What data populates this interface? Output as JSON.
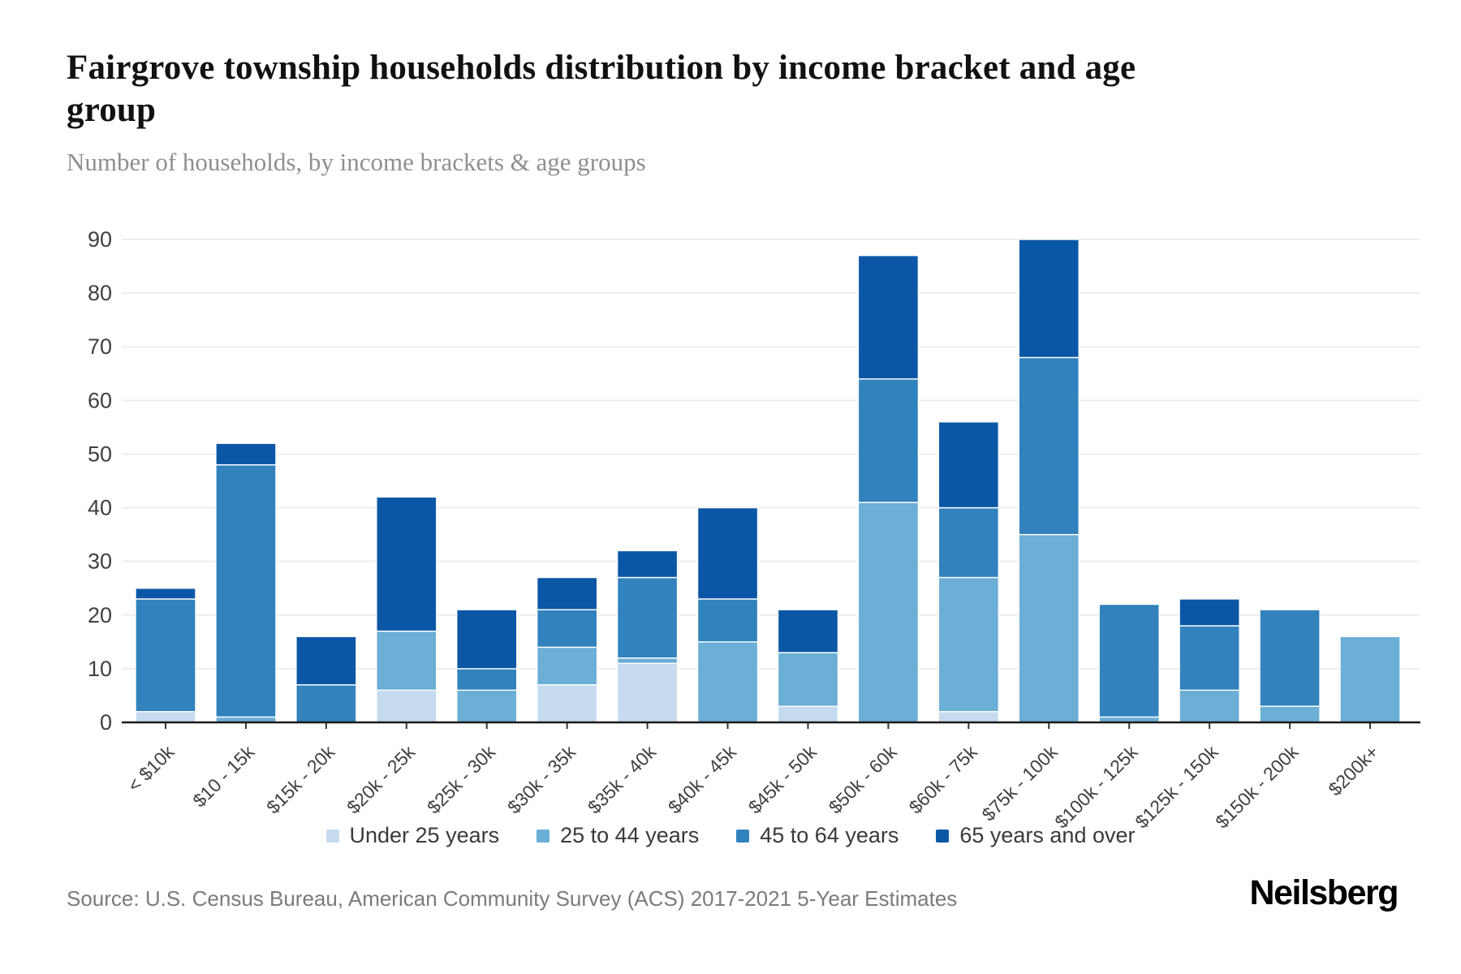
{
  "header": {
    "title": "Fairgrove township households distribution by income bracket and age group",
    "subtitle": "Number of households, by income brackets & age groups"
  },
  "footer": {
    "source": "Source: U.S. Census Bureau, American Community Survey (ACS) 2017-2021 5-Year Estimates",
    "brand": "Neilsberg"
  },
  "chart_data": {
    "type": "bar",
    "stacked": true,
    "title": "Fairgrove township households distribution by income bracket and age group",
    "subtitle": "Number of households, by income brackets & age groups",
    "xlabel": "",
    "ylabel": "",
    "ylim": [
      0,
      90
    ],
    "ytick_step": 10,
    "yticks": [
      0,
      10,
      20,
      30,
      40,
      50,
      60,
      70,
      80,
      90
    ],
    "grid": true,
    "legend_position": "bottom",
    "categories": [
      "< $10k",
      "$10 - 15k",
      "$15k - 20k",
      "$20k - 25k",
      "$25k - 30k",
      "$30k - 35k",
      "$35k - 40k",
      "$40k - 45k",
      "$45k - 50k",
      "$50k - 60k",
      "$60k - 75k",
      "$75k - 100k",
      "$100k - 125k",
      "$125k - 150k",
      "$150k - 200k",
      "$200k+"
    ],
    "series": [
      {
        "name": "Under 25 years",
        "color": "#c6dbef",
        "values": [
          2,
          0,
          0,
          6,
          0,
          7,
          11,
          0,
          3,
          0,
          2,
          0,
          0,
          0,
          0,
          0
        ]
      },
      {
        "name": "25 to 44 years",
        "color": "#6baed6",
        "values": [
          0,
          1,
          0,
          11,
          6,
          7,
          1,
          15,
          10,
          41,
          25,
          35,
          1,
          6,
          3,
          16
        ]
      },
      {
        "name": "45 to 64 years",
        "color": "#3182bd",
        "values": [
          21,
          47,
          7,
          0,
          4,
          7,
          15,
          8,
          0,
          23,
          13,
          33,
          21,
          12,
          18,
          0
        ]
      },
      {
        "name": "65 years and over",
        "color": "#0b57a6",
        "values": [
          2,
          4,
          9,
          25,
          11,
          6,
          5,
          17,
          8,
          23,
          16,
          22,
          0,
          5,
          0,
          0
        ]
      }
    ],
    "totals": [
      25,
      52,
      16,
      42,
      21,
      27,
      32,
      40,
      21,
      87,
      56,
      90,
      22,
      23,
      21,
      16
    ]
  },
  "colors": {
    "gridline": "#ededed",
    "axis_line": "#1a1a1a",
    "tick_label": "#404040",
    "background": "#ffffff"
  }
}
